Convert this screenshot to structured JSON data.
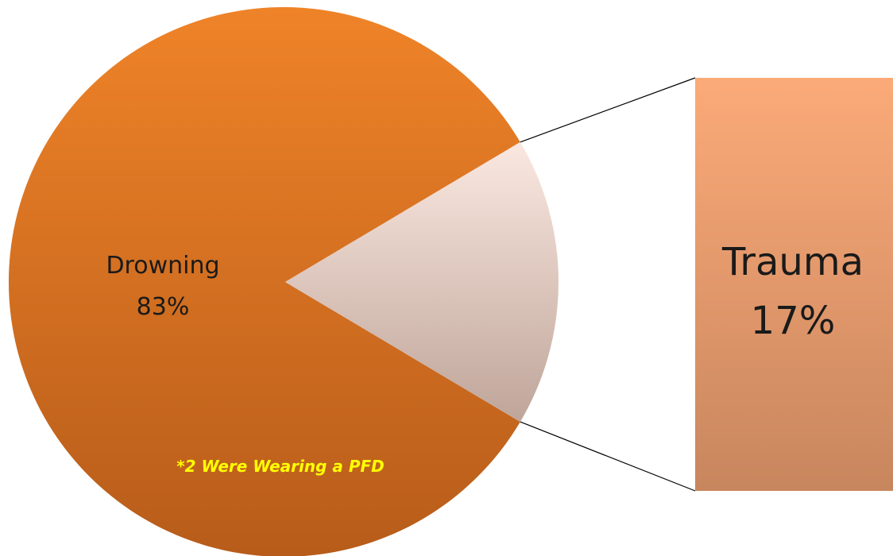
{
  "chart_data": {
    "type": "pie",
    "subtype": "bar-of-pie",
    "slices": [
      {
        "label": "Drowning",
        "value": 83,
        "value_label": "83%",
        "color": "#e57d24"
      },
      {
        "label": "Trauma",
        "value": 17,
        "value_label": "17%",
        "color": "#f2d3c4"
      }
    ],
    "breakout": {
      "slice": "Trauma",
      "color_top": "#fbaa78",
      "color_bottom": "#c8865e"
    },
    "annotations": [
      {
        "text": "*2 Were Wearing a PFD",
        "color": "#ffff00",
        "attached_to": "Drowning"
      }
    ],
    "legend": "none"
  }
}
